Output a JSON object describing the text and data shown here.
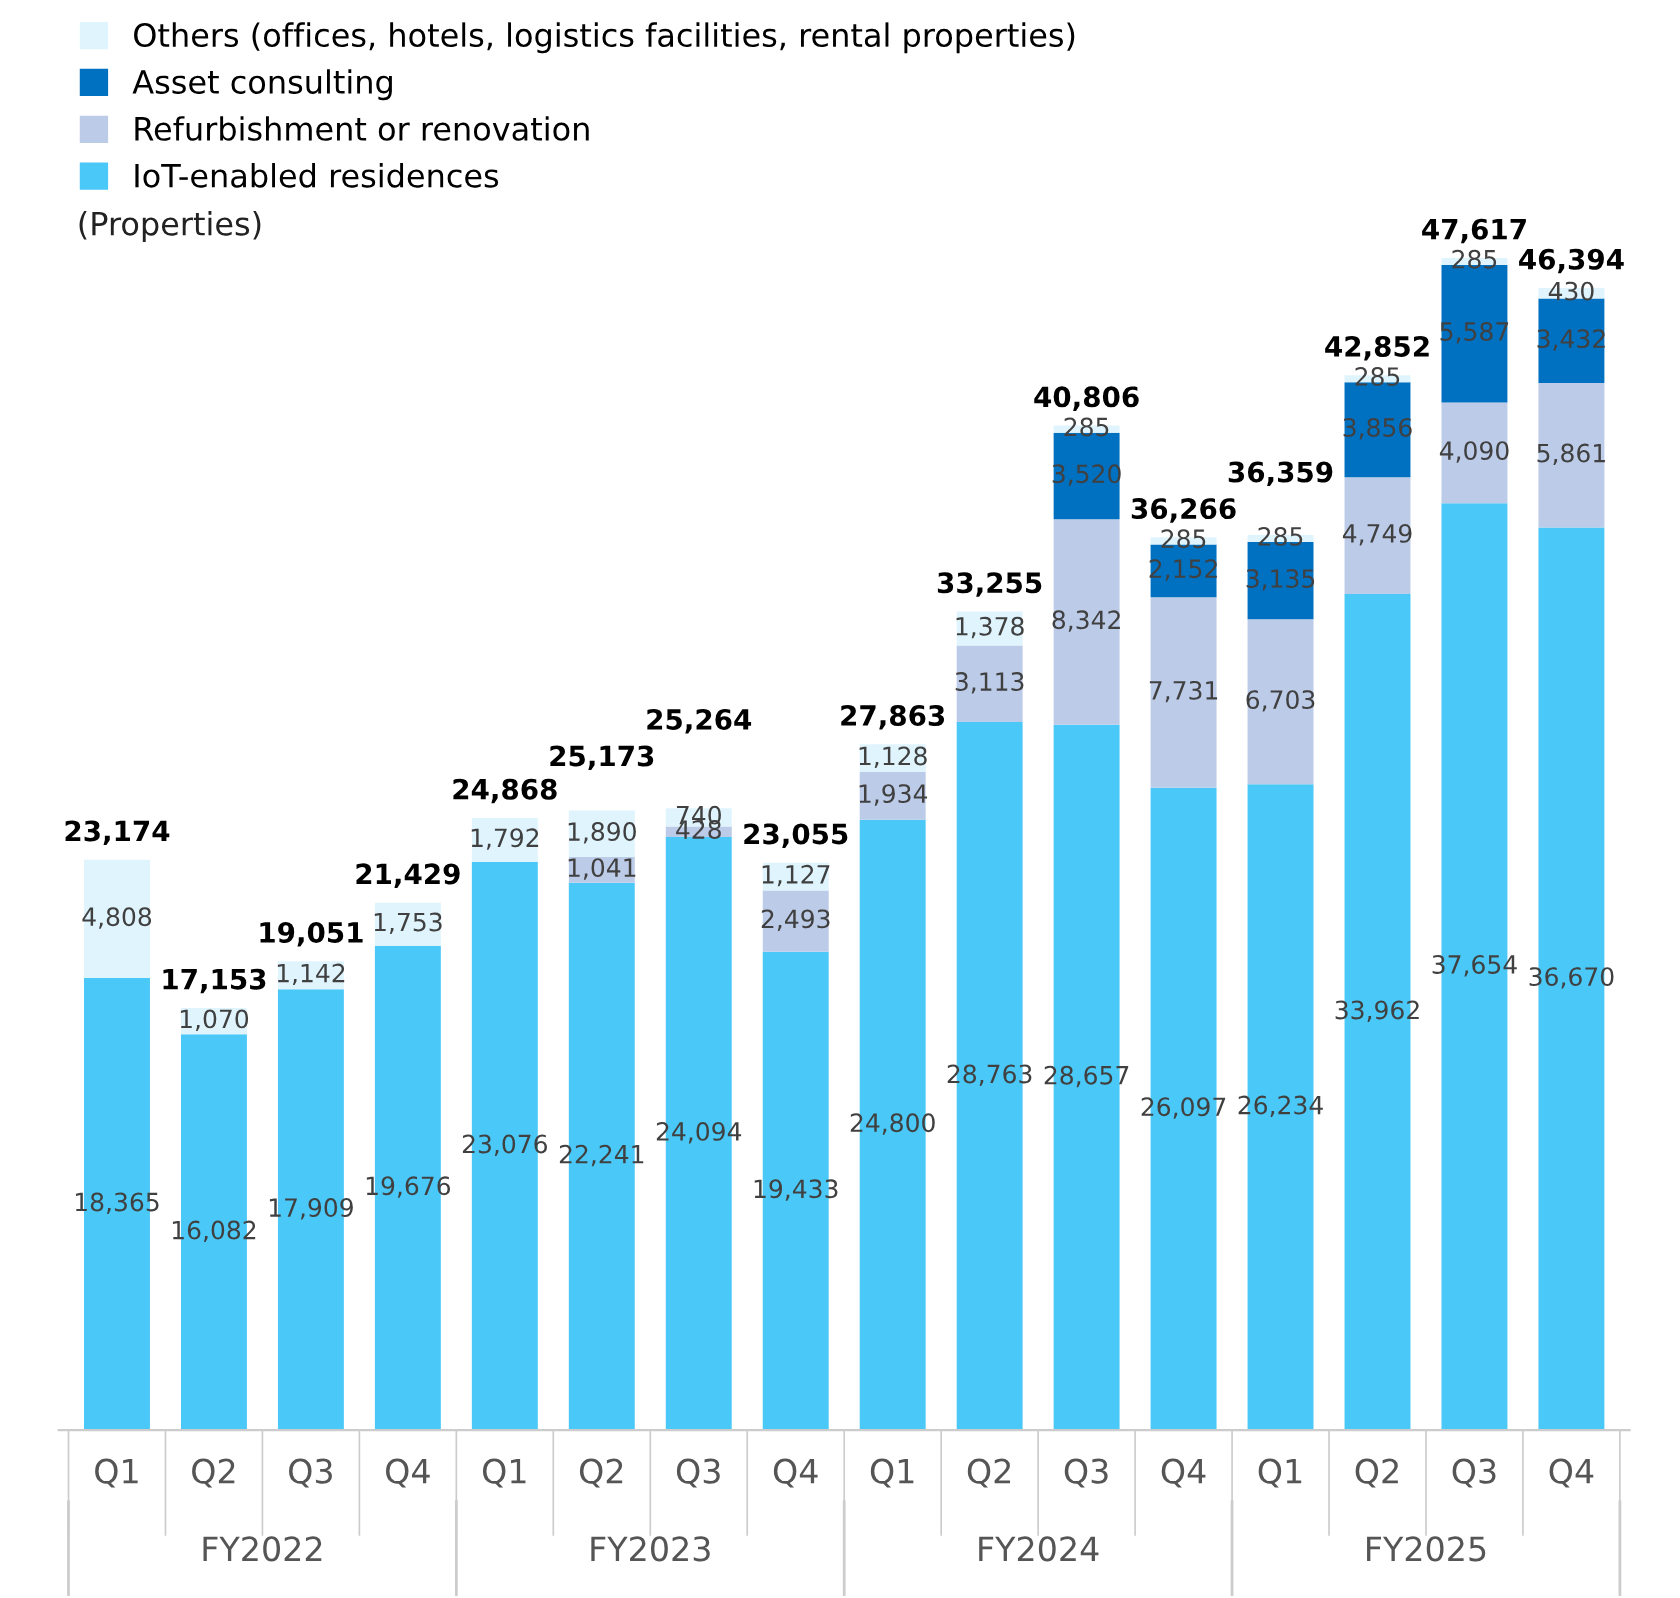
{
  "chart_data": {
    "type": "bar",
    "stacked": true,
    "legend": "top left",
    "grid": false,
    "categories": [
      "Q1",
      "Q2",
      "Q3",
      "Q4",
      "Q1",
      "Q2",
      "Q3",
      "Q4",
      "Q1",
      "Q2",
      "Q3",
      "Q4",
      "Q1",
      "Q2",
      "Q3",
      "Q4"
    ],
    "series": [
      {
        "name": "IoT-enabled residences",
        "color": "#4ac8f7",
        "values": [
          18365,
          16082,
          17909,
          19676,
          23076,
          22241,
          24094,
          19433,
          24800,
          28763,
          28657,
          26097,
          26234,
          33962,
          37654,
          36670
        ],
        "value_labels": [
          "18,365",
          "16,082",
          "17,909",
          "19,676",
          "23,076",
          "22,241",
          "24,094",
          "19,433",
          "24,800",
          "28,763",
          "28,657",
          "26,097",
          "26,234",
          "33,962",
          "37,654",
          "36,670"
        ]
      },
      {
        "name": "Refurbishment or renovation",
        "color": "#bccbe8",
        "values": [
          null,
          null,
          null,
          null,
          null,
          1041,
          428,
          2493,
          1934,
          3113,
          8342,
          7731,
          6703,
          4749,
          4090,
          5861
        ],
        "value_labels": [
          null,
          null,
          null,
          null,
          null,
          "1,041",
          "428",
          "2,493",
          "1,934",
          "3,113",
          "8,342",
          "7,731",
          "6,703",
          "4,749",
          "4,090",
          "5,861"
        ]
      },
      {
        "name": "Asset consulting",
        "color": "#0070c0",
        "values": [
          null,
          null,
          null,
          null,
          null,
          null,
          null,
          null,
          null,
          null,
          3520,
          2152,
          3135,
          3856,
          5587,
          3432
        ],
        "value_labels": [
          null,
          null,
          null,
          null,
          null,
          null,
          null,
          null,
          null,
          null,
          "3,520",
          "2,152",
          "3,135",
          "3,856",
          "5,587",
          "3,432"
        ]
      },
      {
        "name": "Others (offices, hotels, logistics facilities, rental properties)",
        "color": "#dff4fd",
        "values": [
          4808,
          1070,
          1142,
          1753,
          1792,
          1890,
          740,
          1127,
          1128,
          1378,
          285,
          285,
          285,
          285,
          285,
          430
        ],
        "value_labels": [
          "4,808",
          "1,070",
          "1,142",
          "1,753",
          "1,792",
          "1,890",
          "740",
          "1,127",
          "1,128",
          "1,378",
          "285",
          "285",
          "285",
          "285",
          "285",
          "430"
        ]
      }
    ],
    "totals": [
      "23,174",
      "17,153",
      "19,051",
      "21,429",
      "24,868",
      "25,173",
      "25,264",
      "23,055",
      "27,863",
      "33,255",
      "40,806",
      "36,266",
      "36,359",
      "42,852",
      "47,617",
      "46,394"
    ],
    "annotations": [
      "(Properties)",
      "FY2022",
      "FY2023",
      "FY2024",
      "FY2025"
    ]
  }
}
